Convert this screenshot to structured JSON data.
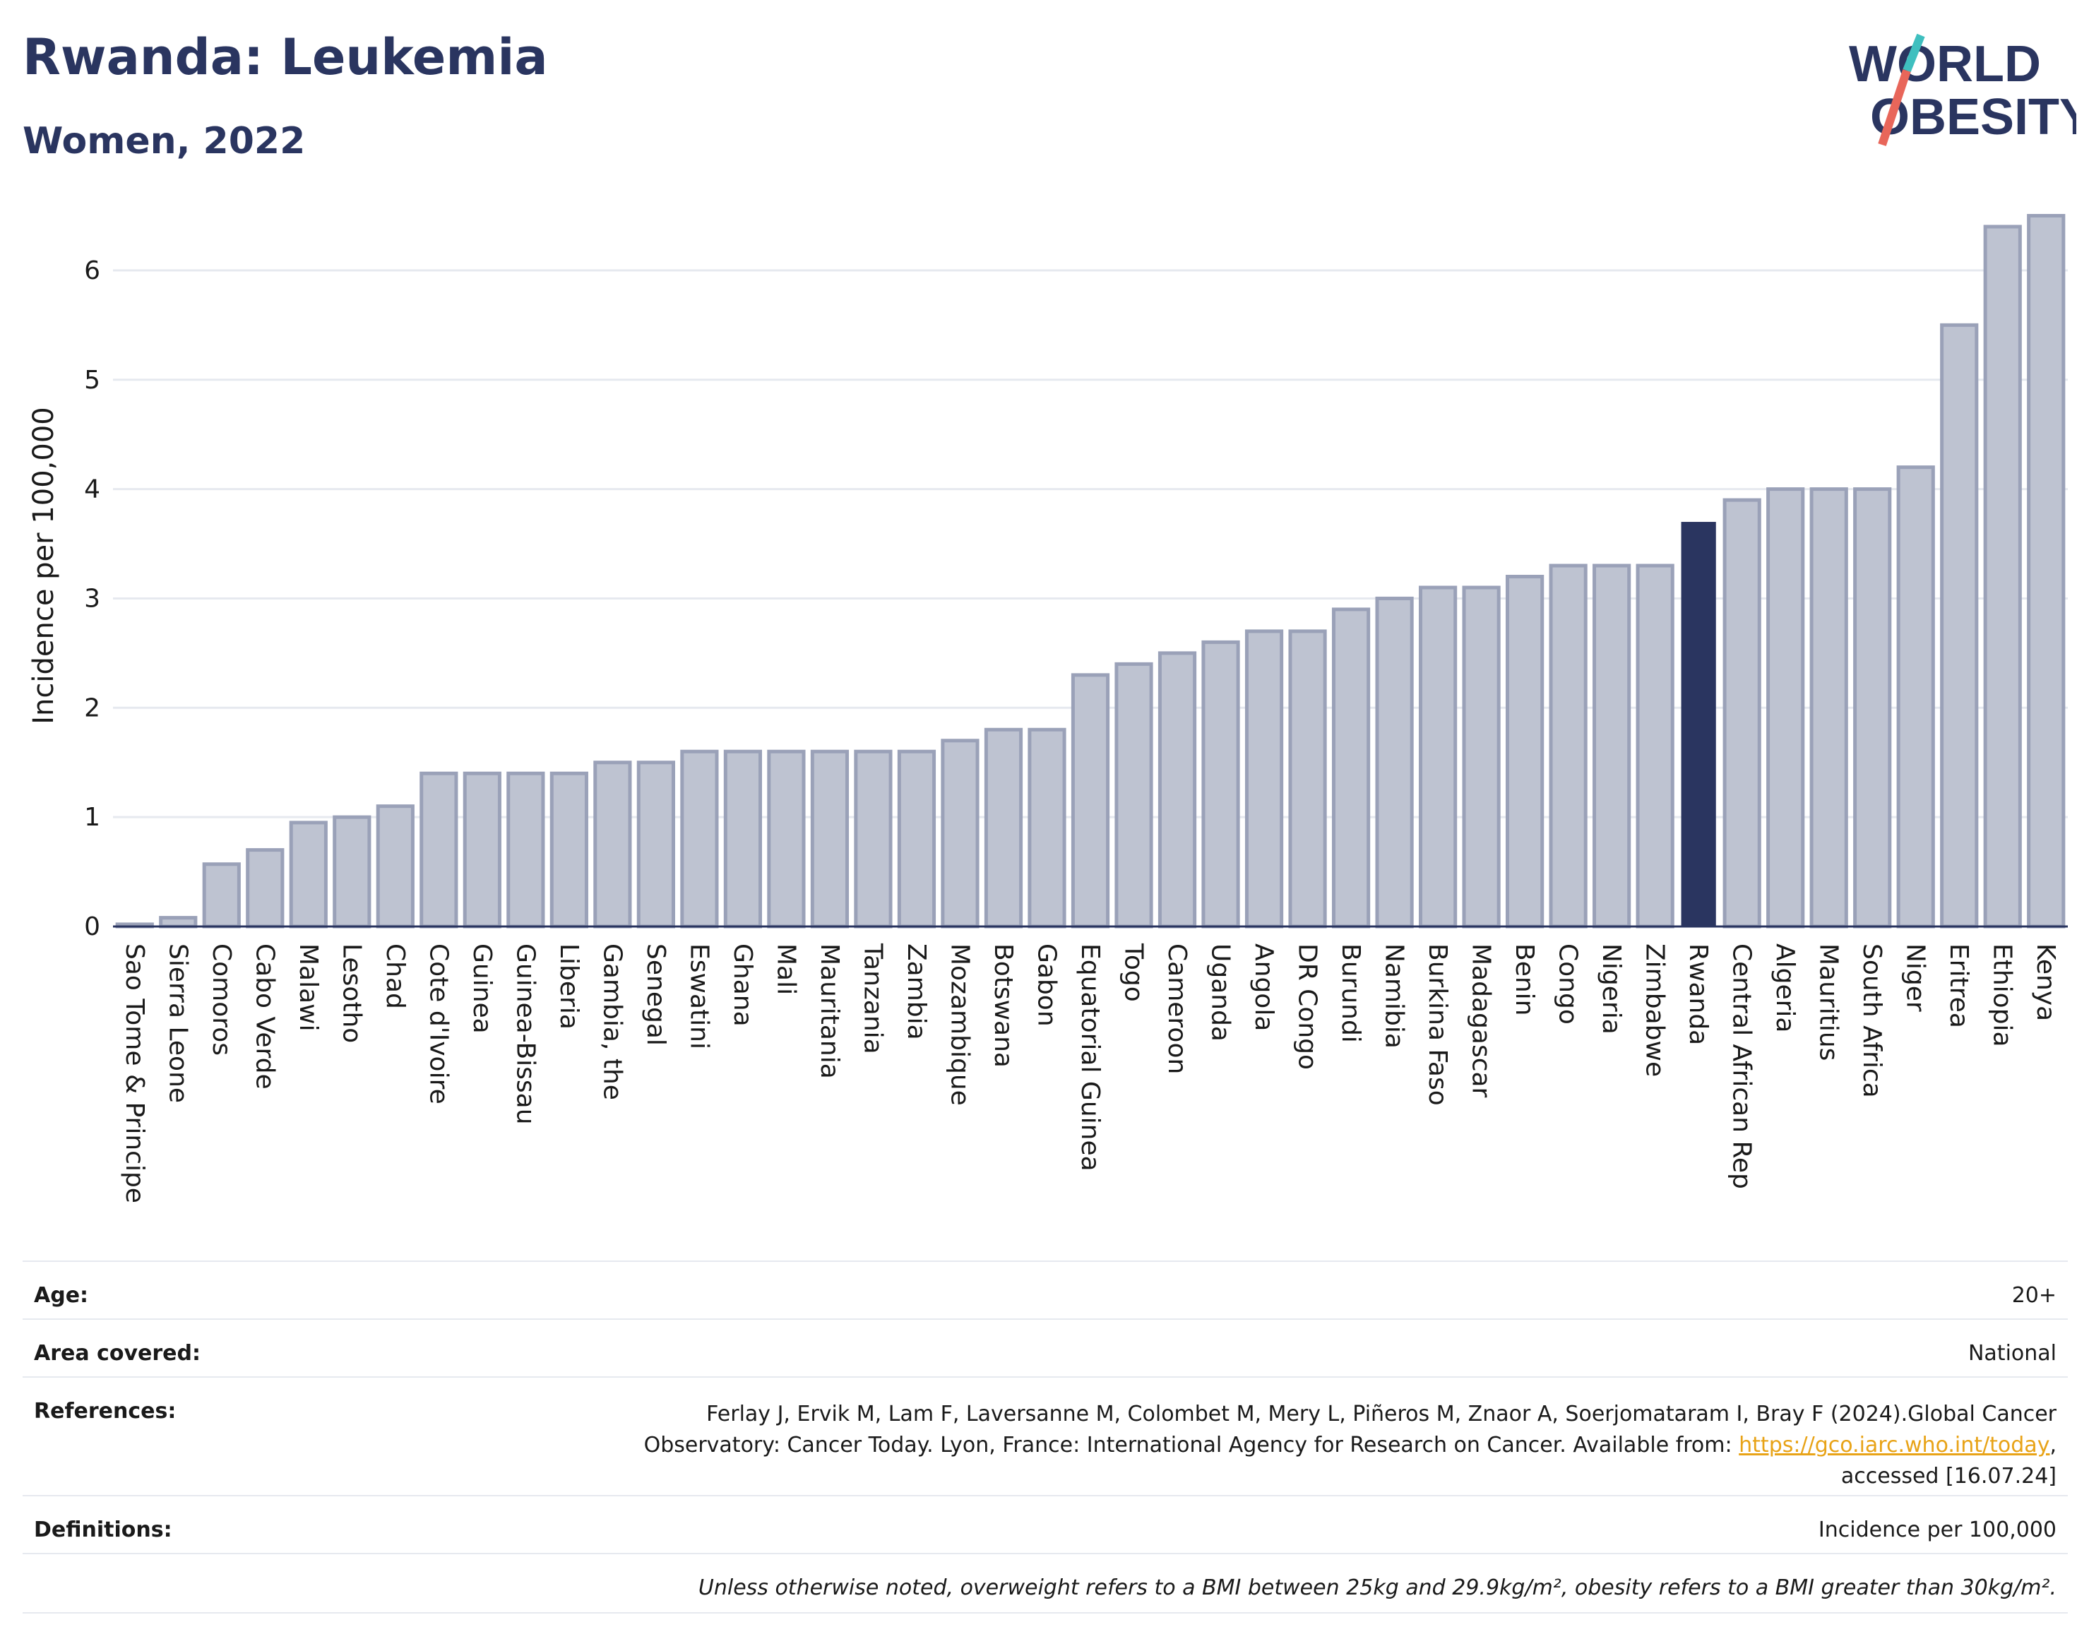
{
  "title": "Rwanda: Leukemia",
  "subtitle": "Women, 2022",
  "logo": {
    "line1": "WORLD",
    "line2": "OBESITY"
  },
  "colors": {
    "bar": "#bec3d1",
    "bar_border": "#9aa1b8",
    "highlight": "#2a3560",
    "grid": "#e6e9ef",
    "axis": "#2a3560"
  },
  "chart_data": {
    "type": "bar",
    "ylabel": "Incidence per 100,000",
    "ylim": [
      0,
      6.6
    ],
    "yticks": [
      0,
      1,
      2,
      3,
      4,
      5,
      6
    ],
    "highlight": "Rwanda",
    "grid": true,
    "categories": [
      "Sao Tome & Principe",
      "Sierra Leone",
      "Comoros",
      "Cabo Verde",
      "Malawi",
      "Lesotho",
      "Chad",
      "Cote d'Ivoire",
      "Guinea",
      "Guinea-Bissau",
      "Liberia",
      "Gambia, the",
      "Senegal",
      "Eswatini",
      "Ghana",
      "Mali",
      "Mauritania",
      "Tanzania",
      "Zambia",
      "Mozambique",
      "Botswana",
      "Gabon",
      "Equatorial Guinea",
      "Togo",
      "Cameroon",
      "Uganda",
      "Angola",
      "DR Congo",
      "Burundi",
      "Namibia",
      "Burkina Faso",
      "Madagascar",
      "Benin",
      "Congo",
      "Nigeria",
      "Zimbabwe",
      "Rwanda",
      "Central African Rep",
      "Algeria",
      "Mauritius",
      "South Africa",
      "Niger",
      "Eritrea",
      "Ethiopia",
      "Kenya"
    ],
    "values": [
      0.02,
      0.08,
      0.57,
      0.7,
      0.95,
      1.0,
      1.1,
      1.4,
      1.4,
      1.4,
      1.4,
      1.5,
      1.5,
      1.6,
      1.6,
      1.6,
      1.6,
      1.6,
      1.6,
      1.7,
      1.8,
      1.8,
      2.3,
      2.4,
      2.5,
      2.6,
      2.7,
      2.7,
      2.9,
      3.0,
      3.1,
      3.1,
      3.2,
      3.3,
      3.3,
      3.3,
      3.7,
      3.9,
      4.0,
      4.0,
      4.0,
      4.2,
      5.5,
      6.4,
      6.5
    ]
  },
  "info": {
    "age_label": "Age:",
    "age_value": "20+",
    "area_label": "Area covered:",
    "area_value": "National",
    "ref_label": "References:",
    "ref_line1": "Ferlay J, Ervik M, Lam F, Laversanne M, Colombet M, Mery L, Piñeros M, Znaor A, Soerjomataram I, Bray F (2024).Global Cancer",
    "ref_line2": "Observatory: Cancer Today. Lyon, France: International Agency for Research on Cancer. Available from: ",
    "ref_link": "https://gco.iarc.who.int/today",
    "ref_line2_end": ",",
    "ref_line3": "accessed [16.07.24]",
    "def_label": "Definitions:",
    "def_value": "Incidence per 100,000",
    "note": "Unless otherwise noted, overweight refers to a BMI between 25kg and 29.9kg/m², obesity refers to a BMI greater than 30kg/m²."
  }
}
